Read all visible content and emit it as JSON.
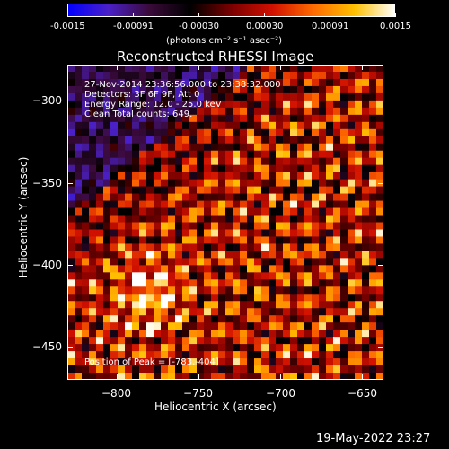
{
  "figure": {
    "title": "Reconstructed RHESSI Image",
    "colorbar": {
      "tick_labels": [
        "-0.0015",
        "-0.00091",
        "-0.00030",
        "0.00030",
        "0.00091",
        "0.0015"
      ],
      "range": [
        -0.0015,
        0.0015
      ],
      "unit_label": "(photons cm⁻² s⁻¹ asec⁻²)",
      "stops": [
        "#0000ff",
        "#4a20c8",
        "#3a0a3a",
        "#000000",
        "#7a0000",
        "#d01000",
        "#ff6a00",
        "#ffc000",
        "#ffffff"
      ]
    },
    "xaxis": {
      "label": "Heliocentric X (arcsec)",
      "tick_labels": [
        "-800",
        "-750",
        "-700",
        "-650"
      ],
      "range": [
        -830,
        -637
      ]
    },
    "yaxis": {
      "label": "Heliocentric Y (arcsec)",
      "tick_labels": [
        "-300",
        "-350",
        "-400",
        "-450"
      ],
      "range": [
        -470,
        -278
      ]
    },
    "info_lines": [
      "27-Nov-2014 23:36:56.000 to 23:38:32.000",
      "Detectors: 3F 6F 9F, Att 0",
      "Energy Range: 12.0 - 25.0 keV",
      "Clean    Total counts: 649."
    ],
    "peak_label": "Position of Peak = [-783,-404]",
    "timestamp": "19-May-2022 23:27"
  },
  "chart_data": {
    "type": "heatmap",
    "title": "Reconstructed RHESSI Image",
    "xlabel": "Heliocentric X (arcsec)",
    "ylabel": "Heliocentric Y (arcsec)",
    "xlim": [
      -830,
      -637
    ],
    "ylim": [
      -470,
      -278
    ],
    "x_ticks": [
      -800,
      -750,
      -700,
      -650
    ],
    "y_ticks": [
      -300,
      -350,
      -400,
      -450
    ],
    "colorbar_range": [
      -0.0015,
      0.0015
    ],
    "colorbar_ticks": [
      -0.0015,
      -0.00091,
      -0.0003,
      0.0003,
      0.00091,
      0.0015
    ],
    "peak_position": [
      -783,
      -404
    ]
  }
}
